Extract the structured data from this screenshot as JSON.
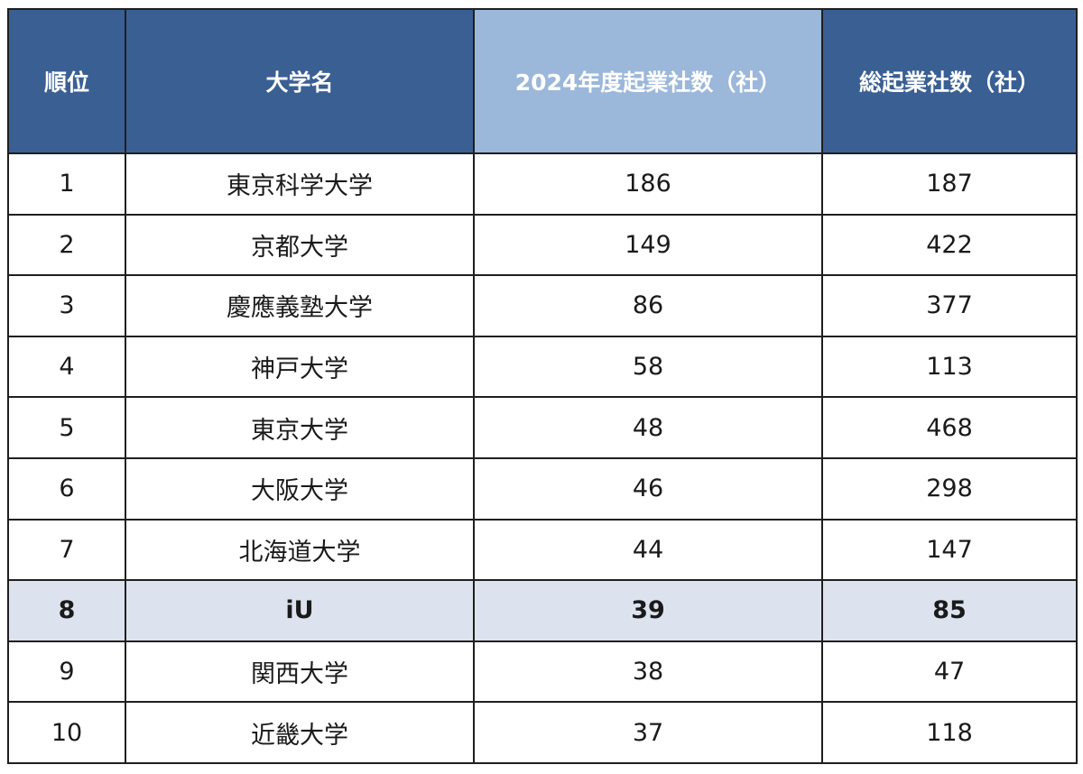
{
  "headers": {
    "rank": "順位",
    "university": "大学名",
    "startups_2024": "2024年度起業社数（社）",
    "startups_total": "総起業社数（社）"
  },
  "rows": [
    {
      "rank": "1",
      "university": "東京科学大学",
      "startups_2024": "186",
      "startups_total": "187"
    },
    {
      "rank": "2",
      "university": "京都大学",
      "startups_2024": "149",
      "startups_total": "422"
    },
    {
      "rank": "3",
      "university": "慶應義塾大学",
      "startups_2024": "86",
      "startups_total": "377"
    },
    {
      "rank": "4",
      "university": "神戸大学",
      "startups_2024": "58",
      "startups_total": "113"
    },
    {
      "rank": "5",
      "university": "東京大学",
      "startups_2024": "48",
      "startups_total": "468"
    },
    {
      "rank": "6",
      "university": "大阪大学",
      "startups_2024": "46",
      "startups_total": "298"
    },
    {
      "rank": "7",
      "university": "北海道大学",
      "startups_2024": "44",
      "startups_total": "147"
    },
    {
      "rank": "8",
      "university": "iU",
      "startups_2024": "39",
      "startups_total": "85"
    },
    {
      "rank": "9",
      "university": "関西大学",
      "startups_2024": "38",
      "startups_total": "47"
    },
    {
      "rank": "10",
      "university": "近畿大学",
      "startups_2024": "37",
      "startups_total": "118"
    }
  ],
  "colors": {
    "header_bg": "#3a5f93",
    "header_highlight_bg": "#9bb7da",
    "highlight_row_bg": "#dde3ee",
    "border": "#1f1f1f"
  },
  "highlighted_rank": "8"
}
